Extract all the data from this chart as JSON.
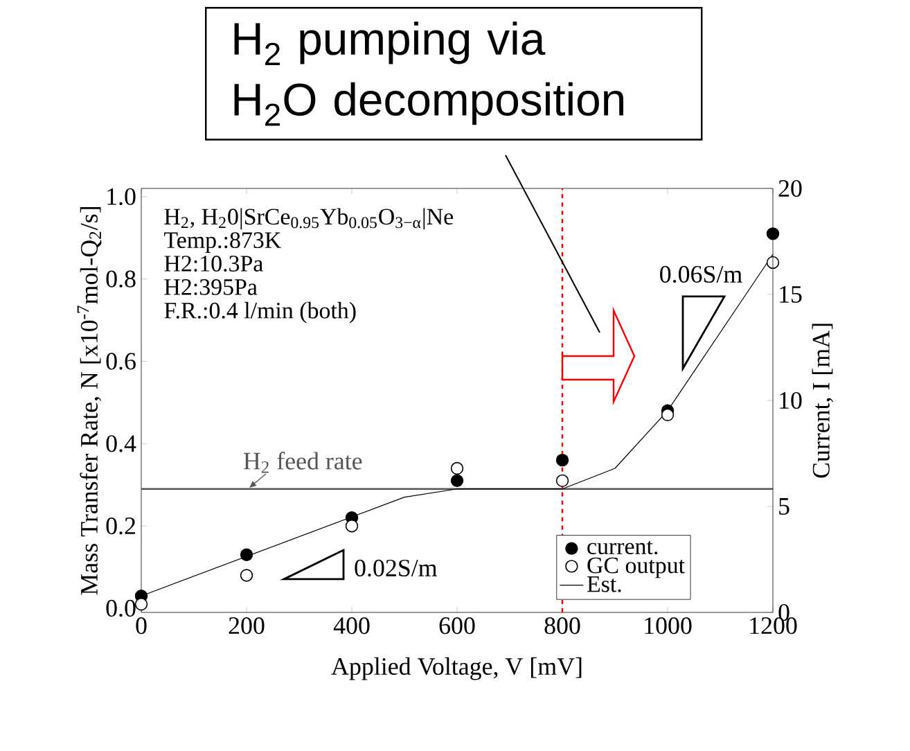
{
  "chart_data": {
    "type": "scatter",
    "xlabel": "Applied Voltage, V [mV]",
    "ylabel": "Mass Transfer Rate, N [x10$^{-7}$mol-Q$_{2}$/s]",
    "y2label": "Current, I [mA]",
    "xlim": [
      0,
      1200
    ],
    "xticks": [
      0,
      200,
      400,
      600,
      800,
      1000,
      1200
    ],
    "ylim": [
      -0.01,
      1.02
    ],
    "yticks": [
      {
        "value": 0,
        "label": "0.0"
      },
      {
        "value": 0.2,
        "label": "0.2"
      },
      {
        "value": 0.4,
        "label": "0.4"
      },
      {
        "value": 0.6,
        "label": "0.6"
      },
      {
        "value": 0.8,
        "label": "0.8"
      },
      {
        "value": 1.0,
        "label": "1.0"
      }
    ],
    "y2lim": [
      0,
      20
    ],
    "y2ticks": [
      0,
      5,
      10,
      15,
      20
    ],
    "x": [
      0,
      200,
      400,
      600,
      800,
      1000,
      1200
    ],
    "series": [
      {
        "name": "current.",
        "marker": "circle",
        "color": "#000000",
        "values": [
          0.03,
          0.13,
          0.22,
          0.31,
          0.36,
          0.48,
          0.91
        ]
      },
      {
        "name": "GC output",
        "marker": "circle",
        "color": "#ffffff",
        "values": [
          0.01,
          0.08,
          0.2,
          0.34,
          0.31,
          0.47,
          0.84
        ]
      },
      {
        "name": "Est.",
        "type": "line",
        "marker": "none",
        "color": "#000000",
        "x": [
          0,
          500,
          600,
          800,
          900,
          1000,
          1200
        ],
        "values": [
          0.03,
          0.27,
          0.29,
          0.29,
          0.34,
          0.48,
          0.86
        ]
      }
    ],
    "ref_lines": [
      {
        "axis": "y",
        "value": 0.29,
        "label": "H$_{2}$ feed rate",
        "color": "#555555",
        "line_style": "solid"
      },
      {
        "axis": "x",
        "value": 800,
        "color": "#ff0000",
        "line_style": "dashed"
      }
    ],
    "annotations": [
      "H$_{2}$, H$_{2}$0|SrCe$_{0.95}$Yb$_{0.05}$O$_{3−α}$|Ne",
      "Temp.:873K",
      "H2:10.3Pa",
      "H2:395Pa",
      "F.R.:0.4 l/min (both)",
      "0.02S/m",
      "0.06S/m",
      "H$_{2}$ pumping via",
      "H$_{2}$O decomposition"
    ],
    "legend": "bottom right"
  }
}
